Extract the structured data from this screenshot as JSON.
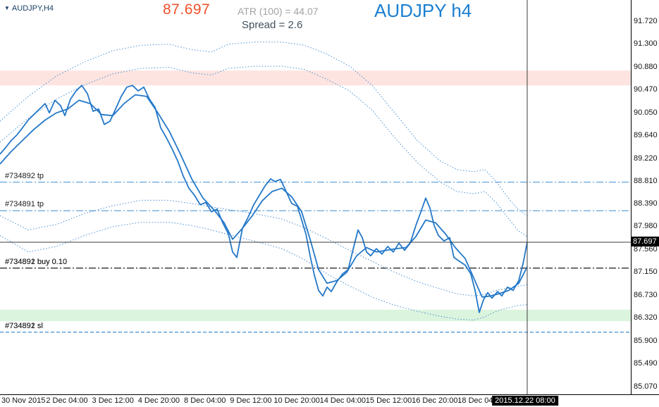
{
  "header": {
    "symbol_label": "AUDJPY,H4",
    "big_price": "87.697",
    "atr_label": "ATR (100) =  44.07",
    "spread_label": "Spread  =  2.6",
    "watermark": "AUDJPY h4"
  },
  "colors": {
    "big_price": "#f0512b",
    "watermark": "#1a7fd2",
    "atr_text": "#a3a3a3",
    "spread_text": "#42505c",
    "solid_line": "#2478c8",
    "dotted_line": "#4a90d2",
    "level_blue": "#3e8ed0",
    "level_black": "#1a1a1a",
    "tag_bg": "#000000",
    "tag_text": "#ffffff"
  },
  "chart_data": {
    "type": "line",
    "title": "AUDJPY h4",
    "x_unit": "px-from-left (time axis)",
    "current_price": "87.697",
    "current_time": "2015.12.22 08:00",
    "current_time_x": 748,
    "y_axis": {
      "min": 85.07,
      "max": 91.72,
      "labels": [
        "91.720",
        "91.300",
        "90.880",
        "90.470",
        "90.050",
        "89.640",
        "89.220",
        "88.810",
        "88.390",
        "87.980",
        "87.560",
        "87.150",
        "86.730",
        "86.320",
        "85.900",
        "85.490",
        "85.070"
      ]
    },
    "x_axis": {
      "labels": [
        "30 Nov 2015",
        "2 Dec 04:00",
        "3 Dec 12:00",
        "4 Dec 20:00",
        "8 Dec 04:00",
        "9 Dec 12:00",
        "10 Dec 20:00",
        "14 Dec 04:00",
        "15 Dec 12:00",
        "16 Dec 20:00",
        "18 Dec 04:00"
      ]
    },
    "zones": [
      {
        "name": "resistance-zone",
        "from": 90.82,
        "to": 90.55,
        "color": "rgba(245,120,100,0.20)"
      },
      {
        "name": "support-zone",
        "from": 86.47,
        "to": 86.26,
        "color": "rgba(110,212,120,0.25)"
      }
    ],
    "levels": [
      {
        "label": "#734892 tp",
        "price": 88.79,
        "style": "dashdot",
        "color": "#3e8ed0"
      },
      {
        "label": "#734891 tp",
        "price": 88.27,
        "style": "dashdot",
        "color": "#3e8ed0"
      },
      {
        "label": "#734891 buy 0.10",
        "price": 87.225,
        "style": "dashdot",
        "color": "#1a1a1a"
      },
      {
        "label": "#734892 buy 0.10",
        "price": 87.225,
        "style": "dashdot",
        "color": "#1a1a1a"
      },
      {
        "label": "#734891 sl",
        "price": 86.06,
        "style": "dash",
        "color": "#3e8ed0"
      },
      {
        "label": "#734892 sl",
        "price": 86.06,
        "style": "dash",
        "color": "#3e8ed0"
      }
    ],
    "series": [
      {
        "name": "envelope-upper-outer",
        "style": "dotted",
        "points": [
          [
            0,
            89.9
          ],
          [
            40,
            90.35
          ],
          [
            80,
            90.72
          ],
          [
            120,
            90.98
          ],
          [
            160,
            91.18
          ],
          [
            200,
            91.28
          ],
          [
            240,
            91.3
          ],
          [
            272,
            91.2
          ],
          [
            300,
            91.16
          ],
          [
            324,
            91.3
          ],
          [
            360,
            91.34
          ],
          [
            400,
            91.34
          ],
          [
            432,
            91.28
          ],
          [
            464,
            91.12
          ],
          [
            496,
            90.9
          ],
          [
            528,
            90.55
          ],
          [
            560,
            90.05
          ],
          [
            592,
            89.55
          ],
          [
            624,
            89.18
          ],
          [
            648,
            89.02
          ],
          [
            672,
            88.98
          ],
          [
            688,
            89.02
          ],
          [
            704,
            88.8
          ],
          [
            720,
            88.52
          ],
          [
            736,
            88.28
          ],
          [
            748,
            88.18
          ]
        ]
      },
      {
        "name": "envelope-upper-inner",
        "style": "dotted",
        "points": [
          [
            0,
            89.52
          ],
          [
            40,
            89.95
          ],
          [
            80,
            90.3
          ],
          [
            120,
            90.56
          ],
          [
            160,
            90.76
          ],
          [
            200,
            90.86
          ],
          [
            240,
            90.88
          ],
          [
            272,
            90.78
          ],
          [
            300,
            90.74
          ],
          [
            324,
            90.86
          ],
          [
            360,
            90.9
          ],
          [
            400,
            90.9
          ],
          [
            432,
            90.84
          ],
          [
            464,
            90.66
          ],
          [
            496,
            90.45
          ],
          [
            528,
            90.1
          ],
          [
            560,
            89.6
          ],
          [
            592,
            89.15
          ],
          [
            624,
            88.8
          ],
          [
            648,
            88.62
          ],
          [
            672,
            88.58
          ],
          [
            688,
            88.62
          ],
          [
            704,
            88.42
          ],
          [
            720,
            88.15
          ],
          [
            736,
            87.9
          ],
          [
            748,
            87.8
          ]
        ]
      },
      {
        "name": "envelope-lower-inner",
        "style": "dotted",
        "points": [
          [
            0,
            88.18
          ],
          [
            40,
            87.92
          ],
          [
            80,
            88.02
          ],
          [
            120,
            88.22
          ],
          [
            160,
            88.36
          ],
          [
            200,
            88.46
          ],
          [
            240,
            88.46
          ],
          [
            272,
            88.4
          ],
          [
            300,
            88.34
          ],
          [
            330,
            88.28
          ],
          [
            360,
            88.22
          ],
          [
            400,
            88.12
          ],
          [
            432,
            87.96
          ],
          [
            464,
            87.76
          ],
          [
            496,
            87.55
          ],
          [
            528,
            87.35
          ],
          [
            560,
            87.15
          ],
          [
            592,
            86.98
          ],
          [
            624,
            86.85
          ],
          [
            648,
            86.76
          ],
          [
            672,
            86.72
          ],
          [
            688,
            86.75
          ],
          [
            704,
            86.82
          ],
          [
            720,
            86.86
          ],
          [
            736,
            86.9
          ],
          [
            748,
            86.92
          ]
        ]
      },
      {
        "name": "envelope-lower-outer",
        "style": "dotted",
        "points": [
          [
            0,
            87.82
          ],
          [
            40,
            87.52
          ],
          [
            80,
            87.62
          ],
          [
            120,
            87.82
          ],
          [
            160,
            87.98
          ],
          [
            200,
            88.06
          ],
          [
            240,
            88.06
          ],
          [
            272,
            88.0
          ],
          [
            300,
            87.92
          ],
          [
            330,
            87.82
          ],
          [
            360,
            87.72
          ],
          [
            400,
            87.58
          ],
          [
            432,
            87.38
          ],
          [
            464,
            87.12
          ],
          [
            496,
            86.9
          ],
          [
            528,
            86.7
          ],
          [
            560,
            86.55
          ],
          [
            592,
            86.44
          ],
          [
            624,
            86.35
          ],
          [
            648,
            86.3
          ],
          [
            672,
            86.28
          ],
          [
            688,
            86.34
          ],
          [
            704,
            86.44
          ],
          [
            720,
            86.5
          ],
          [
            736,
            86.55
          ],
          [
            748,
            86.56
          ]
        ]
      },
      {
        "name": "price-slow",
        "style": "solid",
        "points": [
          [
            0,
            89.12
          ],
          [
            16,
            89.35
          ],
          [
            32,
            89.55
          ],
          [
            48,
            89.75
          ],
          [
            64,
            89.92
          ],
          [
            80,
            90.05
          ],
          [
            96,
            90.12
          ],
          [
            112,
            90.28
          ],
          [
            128,
            90.22
          ],
          [
            144,
            90.02
          ],
          [
            160,
            90.0
          ],
          [
            176,
            90.22
          ],
          [
            192,
            90.38
          ],
          [
            208,
            90.35
          ],
          [
            224,
            90.05
          ],
          [
            240,
            89.72
          ],
          [
            256,
            89.3
          ],
          [
            272,
            88.85
          ],
          [
            288,
            88.5
          ],
          [
            304,
            88.28
          ],
          [
            318,
            88.05
          ],
          [
            330,
            87.75
          ],
          [
            344,
            87.95
          ],
          [
            358,
            88.18
          ],
          [
            372,
            88.45
          ],
          [
            386,
            88.62
          ],
          [
            400,
            88.68
          ],
          [
            414,
            88.52
          ],
          [
            428,
            88.25
          ],
          [
            440,
            87.75
          ],
          [
            452,
            87.2
          ],
          [
            464,
            86.95
          ],
          [
            478,
            87.0
          ],
          [
            492,
            87.15
          ],
          [
            506,
            87.45
          ],
          [
            520,
            87.6
          ],
          [
            534,
            87.52
          ],
          [
            548,
            87.55
          ],
          [
            562,
            87.58
          ],
          [
            576,
            87.6
          ],
          [
            590,
            87.8
          ],
          [
            604,
            88.1
          ],
          [
            618,
            88.05
          ],
          [
            632,
            87.85
          ],
          [
            646,
            87.6
          ],
          [
            660,
            87.4
          ],
          [
            672,
            87.05
          ],
          [
            684,
            86.7
          ],
          [
            696,
            86.72
          ],
          [
            708,
            86.76
          ],
          [
            722,
            86.82
          ],
          [
            736,
            86.95
          ],
          [
            748,
            87.25
          ]
        ]
      },
      {
        "name": "price-fast",
        "style": "solid",
        "points": [
          [
            0,
            89.3
          ],
          [
            8,
            89.42
          ],
          [
            16,
            89.55
          ],
          [
            24,
            89.65
          ],
          [
            32,
            89.78
          ],
          [
            40,
            89.92
          ],
          [
            48,
            90.02
          ],
          [
            56,
            90.12
          ],
          [
            64,
            90.22
          ],
          [
            70,
            90.05
          ],
          [
            78,
            90.28
          ],
          [
            86,
            90.18
          ],
          [
            92,
            90.0
          ],
          [
            100,
            90.3
          ],
          [
            108,
            90.45
          ],
          [
            116,
            90.55
          ],
          [
            124,
            90.4
          ],
          [
            132,
            90.08
          ],
          [
            140,
            90.12
          ],
          [
            148,
            89.84
          ],
          [
            156,
            89.9
          ],
          [
            164,
            90.12
          ],
          [
            172,
            90.35
          ],
          [
            180,
            90.52
          ],
          [
            188,
            90.55
          ],
          [
            196,
            90.45
          ],
          [
            204,
            90.52
          ],
          [
            212,
            90.3
          ],
          [
            220,
            90.15
          ],
          [
            228,
            89.78
          ],
          [
            236,
            89.6
          ],
          [
            244,
            89.4
          ],
          [
            252,
            89.18
          ],
          [
            260,
            88.9
          ],
          [
            268,
            88.68
          ],
          [
            276,
            88.55
          ],
          [
            284,
            88.38
          ],
          [
            292,
            88.42
          ],
          [
            300,
            88.25
          ],
          [
            308,
            88.3
          ],
          [
            316,
            88.05
          ],
          [
            324,
            87.85
          ],
          [
            330,
            87.52
          ],
          [
            336,
            87.42
          ],
          [
            344,
            87.95
          ],
          [
            352,
            88.15
          ],
          [
            360,
            88.38
          ],
          [
            368,
            88.55
          ],
          [
            376,
            88.72
          ],
          [
            384,
            88.85
          ],
          [
            390,
            88.8
          ],
          [
            398,
            88.84
          ],
          [
            406,
            88.62
          ],
          [
            414,
            88.4
          ],
          [
            422,
            88.35
          ],
          [
            428,
            88.1
          ],
          [
            434,
            87.85
          ],
          [
            440,
            87.45
          ],
          [
            446,
            87.1
          ],
          [
            452,
            86.82
          ],
          [
            458,
            86.72
          ],
          [
            464,
            86.88
          ],
          [
            470,
            86.8
          ],
          [
            478,
            86.98
          ],
          [
            486,
            87.12
          ],
          [
            494,
            87.2
          ],
          [
            502,
            87.62
          ],
          [
            508,
            87.92
          ],
          [
            514,
            87.78
          ],
          [
            520,
            87.52
          ],
          [
            526,
            87.45
          ],
          [
            534,
            87.58
          ],
          [
            542,
            87.48
          ],
          [
            550,
            87.62
          ],
          [
            558,
            87.52
          ],
          [
            566,
            87.68
          ],
          [
            574,
            87.55
          ],
          [
            582,
            87.68
          ],
          [
            590,
            88.0
          ],
          [
            598,
            88.28
          ],
          [
            604,
            88.5
          ],
          [
            610,
            88.32
          ],
          [
            616,
            88.0
          ],
          [
            622,
            87.82
          ],
          [
            630,
            87.72
          ],
          [
            638,
            87.78
          ],
          [
            644,
            87.42
          ],
          [
            652,
            87.35
          ],
          [
            660,
            87.28
          ],
          [
            668,
            87.12
          ],
          [
            674,
            86.82
          ],
          [
            680,
            86.42
          ],
          [
            686,
            86.65
          ],
          [
            692,
            86.78
          ],
          [
            698,
            86.68
          ],
          [
            706,
            86.8
          ],
          [
            712,
            86.72
          ],
          [
            720,
            86.88
          ],
          [
            728,
            86.82
          ],
          [
            736,
            87.0
          ],
          [
            742,
            87.3
          ],
          [
            748,
            87.697
          ]
        ]
      }
    ]
  }
}
